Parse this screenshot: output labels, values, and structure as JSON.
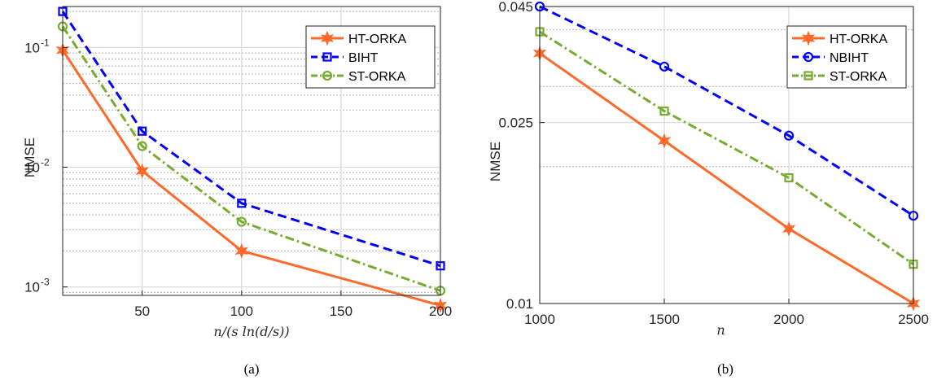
{
  "chart_data": [
    {
      "type": "line",
      "caption": "(a)",
      "xlabel": "n/(s ln(d/s))",
      "ylabel": "NMSE",
      "xlim": [
        10,
        200
      ],
      "ylim": [
        0.00085,
        0.22
      ],
      "yscale": "log",
      "xticks": [
        50,
        100,
        150,
        200
      ],
      "xtick_labels": [
        "50",
        "100",
        "150",
        "200"
      ],
      "yticks": [
        0.001,
        0.01,
        0.1
      ],
      "ytick_labels": [
        "10",
        "10",
        "10"
      ],
      "ytick_exponents": [
        "-3",
        "-2",
        "-1"
      ],
      "grid": true,
      "legend_position": "top-right",
      "series": [
        {
          "name": "HT-ORKA",
          "color": "#ff6929",
          "marker": "star",
          "dash": "solid",
          "x": [
            10,
            50,
            100,
            200
          ],
          "y": [
            0.095,
            0.0093,
            0.002,
            0.0007
          ]
        },
        {
          "name": "BIHT",
          "color": "#0000ff",
          "marker": "square",
          "dash": "dash",
          "x": [
            10,
            50,
            100,
            200
          ],
          "y": [
            0.2,
            0.02,
            0.005,
            0.0015
          ]
        },
        {
          "name": "ST-ORKA",
          "color": "#77ac30",
          "marker": "circle",
          "dash": "dashdot",
          "x": [
            10,
            50,
            100,
            200
          ],
          "y": [
            0.15,
            0.015,
            0.0035,
            0.00093
          ]
        }
      ]
    },
    {
      "type": "line",
      "caption": "(b)",
      "xlabel": "n",
      "ylabel": "NMSE",
      "xlim": [
        1000,
        2500
      ],
      "ylim": [
        0.01,
        0.045
      ],
      "yscale": "log",
      "xticks": [
        1000,
        1500,
        2000,
        2500
      ],
      "xtick_labels": [
        "1000",
        "1500",
        "2000",
        "2500"
      ],
      "yticks": [
        0.01,
        0.025,
        0.045
      ],
      "ytick_labels": [
        "0.01",
        "0.025",
        "0.045"
      ],
      "grid": true,
      "legend_position": "top-right",
      "series": [
        {
          "name": "HT-ORKA",
          "color": "#ff6929",
          "marker": "star",
          "dash": "solid",
          "x": [
            1000,
            1500,
            2000,
            2500
          ],
          "y": [
            0.0355,
            0.0228,
            0.0146,
            0.01
          ]
        },
        {
          "name": "NBIHT",
          "color": "#0000ff",
          "marker": "circle",
          "dash": "dash",
          "x": [
            1000,
            1500,
            2000,
            2500
          ],
          "y": [
            0.045,
            0.0332,
            0.0234,
            0.0156
          ]
        },
        {
          "name": "ST-ORKA",
          "color": "#77ac30",
          "marker": "square",
          "dash": "dashdot",
          "x": [
            1000,
            1500,
            2000,
            2500
          ],
          "y": [
            0.0396,
            0.0265,
            0.0189,
            0.0122
          ]
        }
      ]
    }
  ]
}
